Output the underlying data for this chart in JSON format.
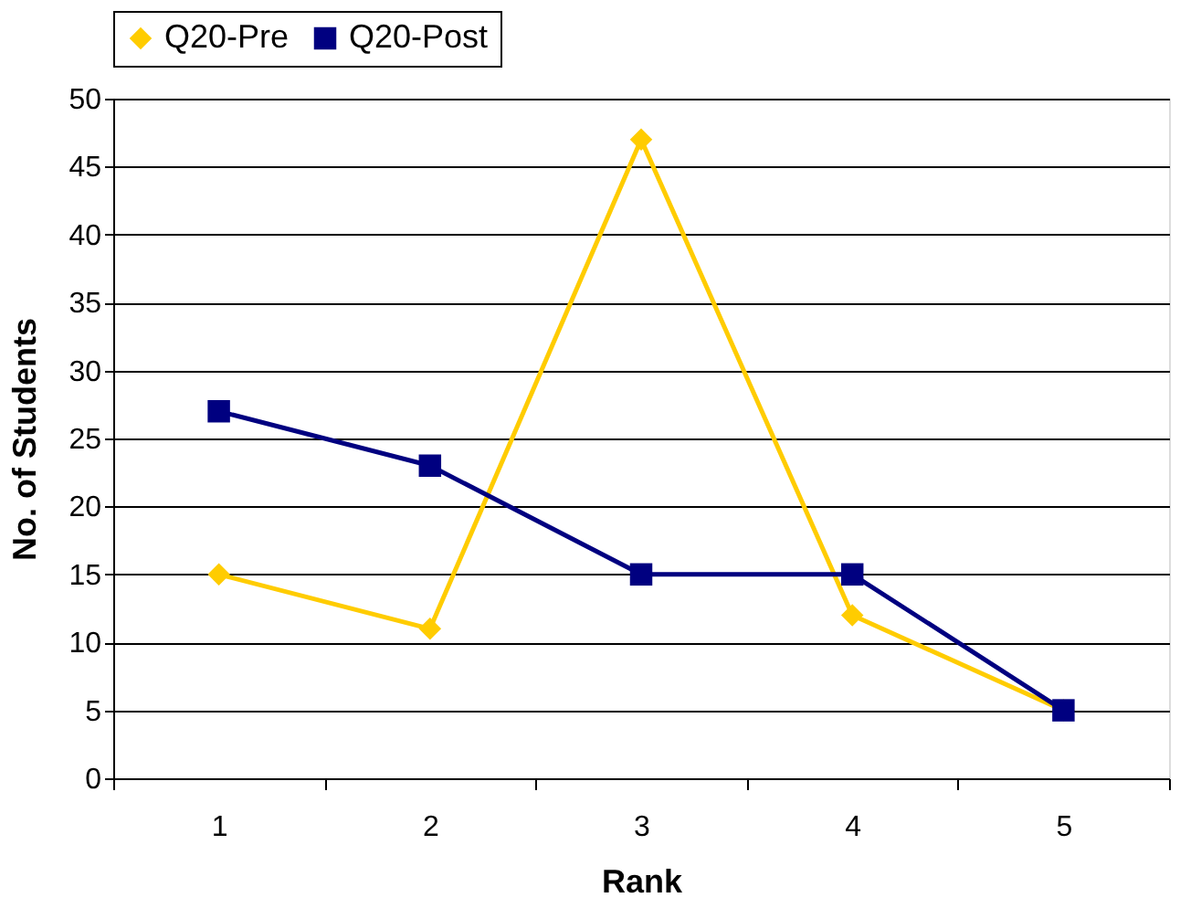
{
  "chart_data": {
    "type": "line",
    "xlabel": "Rank",
    "ylabel": "No. of Students",
    "categories": [
      "1",
      "2",
      "3",
      "4",
      "5"
    ],
    "series": [
      {
        "name": "Q20-Pre",
        "color": "#ffcc00",
        "marker": "diamond",
        "values": [
          15,
          11,
          47,
          12,
          5
        ]
      },
      {
        "name": "Q20-Post",
        "color": "#000080",
        "marker": "square",
        "values": [
          27,
          23,
          15,
          15,
          5
        ]
      }
    ],
    "ylim": [
      0,
      50
    ],
    "yticks": [
      0,
      5,
      10,
      15,
      20,
      25,
      30,
      35,
      40,
      45,
      50
    ],
    "grid": "y",
    "legend": "top",
    "line_style": "solid"
  }
}
